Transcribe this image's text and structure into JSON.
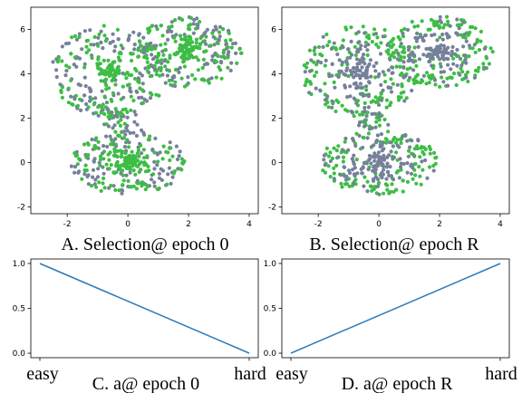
{
  "colors": {
    "gray_points": "#76809a",
    "green_points": "#3dbd45",
    "line": "#2b7bba"
  },
  "chart_data": [
    {
      "id": "A",
      "type": "scatter",
      "caption": "A. Selection@ epoch 0",
      "xlim": [
        -3.2,
        4.3
      ],
      "ylim": [
        -2.3,
        7.0
      ],
      "xticks": [
        "-2",
        "0",
        "2",
        "4"
      ],
      "xtick_values": [
        -2,
        0,
        2,
        4
      ],
      "yticks": [
        "-2",
        "0",
        "2",
        "4",
        "6"
      ],
      "ytick_values": [
        -2,
        0,
        2,
        4,
        6
      ],
      "clusters": [
        {
          "center": [
            -0.6,
            4.1
          ],
          "spread": [
            1.2,
            1.3
          ],
          "n": 260,
          "green_dense_center": [
            -0.6,
            4.0
          ]
        },
        {
          "center": [
            2.0,
            5.0
          ],
          "spread": [
            1.1,
            1.0
          ],
          "n": 240,
          "green_dense_center": [
            2.0,
            5.0
          ]
        },
        {
          "center": [
            0.0,
            0.0
          ],
          "spread": [
            1.2,
            0.9
          ],
          "n": 240,
          "green_dense_center": [
            0.0,
            0.05
          ]
        }
      ],
      "selected_fraction_note": "green points concentrated near cluster centers (easy)"
    },
    {
      "id": "B",
      "type": "scatter",
      "caption": "B. Selection@ epoch R",
      "xlim": [
        -3.2,
        4.3
      ],
      "ylim": [
        -2.3,
        7.0
      ],
      "xticks": [
        "-2",
        "0",
        "2",
        "4"
      ],
      "xtick_values": [
        -2,
        0,
        2,
        4
      ],
      "yticks": [
        "-2",
        "0",
        "2",
        "4",
        "6"
      ],
      "ytick_values": [
        -2,
        0,
        2,
        4,
        6
      ],
      "clusters": [
        {
          "center": [
            -0.6,
            4.1
          ],
          "spread": [
            1.2,
            1.3
          ],
          "n": 260
        },
        {
          "center": [
            2.0,
            5.0
          ],
          "spread": [
            1.1,
            1.0
          ],
          "n": 240
        },
        {
          "center": [
            0.0,
            0.0
          ],
          "spread": [
            1.2,
            0.9
          ],
          "n": 240
        }
      ],
      "selected_fraction_note": "green points on cluster periphery (hard)"
    },
    {
      "id": "C",
      "type": "line",
      "caption": "C. a@ epoch 0",
      "x": [
        0,
        1
      ],
      "y": [
        1.0,
        0.0
      ],
      "ylim": [
        -0.05,
        1.05
      ],
      "yticks": [
        "0.0",
        "0.5",
        "1.0"
      ],
      "ytick_values": [
        0.0,
        0.5,
        1.0
      ],
      "categories": [
        "easy",
        "hard"
      ]
    },
    {
      "id": "D",
      "type": "line",
      "caption": "D. a@ epoch R",
      "x": [
        0,
        1
      ],
      "y": [
        0.0,
        1.0
      ],
      "ylim": [
        -0.05,
        1.05
      ],
      "yticks": [
        "0.0",
        "0.5",
        "1.0"
      ],
      "ytick_values": [
        0.0,
        0.5,
        1.0
      ],
      "categories": [
        "easy",
        "hard"
      ]
    }
  ]
}
